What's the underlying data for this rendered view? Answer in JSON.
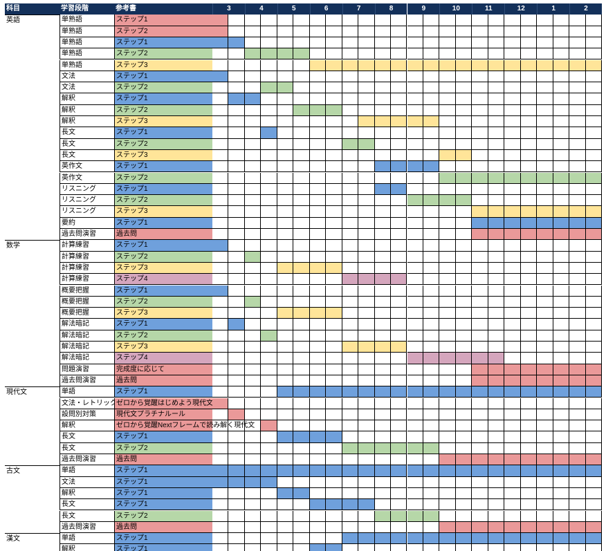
{
  "colors": {
    "header_bg": "#13305a",
    "step1": "#6fa0dc",
    "step2": "#b6d7a8",
    "step3": "#ffe599",
    "step4": "#d5a6bd",
    "past": "#ea9999"
  },
  "headers": {
    "subject": "科目",
    "stage": "学習段階",
    "book": "参考書",
    "months": [
      "3",
      "4",
      "5",
      "6",
      "7",
      "8",
      "9",
      "10",
      "11",
      "12",
      "1",
      "2"
    ]
  },
  "rows": [
    {
      "subject": "英語",
      "stage": "単熟語",
      "book": "ステップ1",
      "color": "past",
      "bars": [
        [
          0,
          0.5
        ]
      ]
    },
    {
      "subject": "",
      "stage": "単熟語",
      "book": "ステップ2",
      "color": "past",
      "bars": [
        [
          0,
          0.5
        ]
      ]
    },
    {
      "subject": "",
      "stage": "単熟語",
      "book": "ステップ1",
      "color": "step1",
      "bars": [
        [
          0,
          1
        ]
      ]
    },
    {
      "subject": "",
      "stage": "単熟語",
      "book": "ステップ2",
      "color": "step2",
      "bars": [
        [
          1,
          3
        ]
      ]
    },
    {
      "subject": "",
      "stage": "単熟語",
      "book": "ステップ3",
      "color": "step3",
      "bars": [
        [
          3,
          12
        ]
      ]
    },
    {
      "subject": "",
      "stage": "文法",
      "book": "ステップ1",
      "color": "step1",
      "bars": [
        [
          0,
          0.5
        ]
      ]
    },
    {
      "subject": "",
      "stage": "文法",
      "book": "ステップ2",
      "color": "step2",
      "bars": [
        [
          1.5,
          2.5
        ]
      ]
    },
    {
      "subject": "",
      "stage": "解釈",
      "book": "ステップ1",
      "color": "step1",
      "bars": [
        [
          0.5,
          1.5
        ]
      ]
    },
    {
      "subject": "",
      "stage": "解釈",
      "book": "ステップ2",
      "color": "step2",
      "bars": [
        [
          2.5,
          4
        ]
      ]
    },
    {
      "subject": "",
      "stage": "解釈",
      "book": "ステップ3",
      "color": "step3",
      "bars": [
        [
          4.5,
          7
        ]
      ]
    },
    {
      "subject": "",
      "stage": "長文",
      "book": "ステップ1",
      "color": "step1",
      "bars": [
        [
          1.5,
          2
        ]
      ]
    },
    {
      "subject": "",
      "stage": "長文",
      "book": "ステップ2",
      "color": "step2",
      "bars": [
        [
          4,
          5
        ]
      ]
    },
    {
      "subject": "",
      "stage": "長文",
      "book": "ステップ3",
      "color": "step3",
      "bars": [
        [
          7,
          8
        ]
      ]
    },
    {
      "subject": "",
      "stage": "英作文",
      "book": "ステップ1",
      "color": "step1",
      "bars": [
        [
          5,
          7
        ]
      ]
    },
    {
      "subject": "",
      "stage": "英作文",
      "book": "ステップ2",
      "color": "step2",
      "bars": [
        [
          7,
          12
        ]
      ]
    },
    {
      "subject": "",
      "stage": "リスニング",
      "book": "ステップ1",
      "color": "step1",
      "bars": [
        [
          5,
          6
        ]
      ]
    },
    {
      "subject": "",
      "stage": "リスニング",
      "book": "ステップ2",
      "color": "step2",
      "bars": [
        [
          6,
          8
        ]
      ]
    },
    {
      "subject": "",
      "stage": "リスニング",
      "book": "ステップ3",
      "color": "step3",
      "bars": [
        [
          8,
          12
        ]
      ]
    },
    {
      "subject": "",
      "stage": "要約",
      "book": "ステップ1",
      "color": "step1",
      "bars": [
        [
          8,
          12
        ]
      ]
    },
    {
      "subject": "",
      "stage": "過去問演習",
      "book": "過去問",
      "color": "past",
      "bars": [
        [
          8,
          12
        ]
      ]
    },
    {
      "subject": "数学",
      "stage": "計算練習",
      "book": "ステップ1",
      "color": "step1",
      "bars": [
        [
          0,
          0.5
        ]
      ]
    },
    {
      "subject": "",
      "stage": "計算練習",
      "book": "ステップ2",
      "color": "step2",
      "bars": [
        [
          1,
          1.5
        ]
      ]
    },
    {
      "subject": "",
      "stage": "計算練習",
      "book": "ステップ3",
      "color": "step3",
      "bars": [
        [
          2,
          4
        ]
      ]
    },
    {
      "subject": "",
      "stage": "計算練習",
      "book": "ステップ4",
      "color": "step4",
      "bars": [
        [
          4,
          6
        ]
      ]
    },
    {
      "subject": "",
      "stage": "概要把握",
      "book": "ステップ1",
      "color": "step1",
      "bars": [
        [
          0,
          0.5
        ]
      ]
    },
    {
      "subject": "",
      "stage": "概要把握",
      "book": "ステップ2",
      "color": "step2",
      "bars": [
        [
          1,
          1.5
        ]
      ]
    },
    {
      "subject": "",
      "stage": "概要把握",
      "book": "ステップ3",
      "color": "step3",
      "bars": [
        [
          2,
          4
        ]
      ]
    },
    {
      "subject": "",
      "stage": "解法暗記",
      "book": "ステップ1",
      "color": "step1",
      "bars": [
        [
          0.5,
          1
        ]
      ]
    },
    {
      "subject": "",
      "stage": "解法暗記",
      "book": "ステップ2",
      "color": "step2",
      "bars": [
        [
          1.5,
          2
        ]
      ]
    },
    {
      "subject": "",
      "stage": "解法暗記",
      "book": "ステップ3",
      "color": "step3",
      "bars": [
        [
          4,
          6
        ]
      ]
    },
    {
      "subject": "",
      "stage": "解法暗記",
      "book": "ステップ4",
      "color": "step4",
      "bars": [
        [
          6,
          9
        ]
      ]
    },
    {
      "subject": "",
      "stage": "問題演習",
      "book": "完成度に応じて",
      "color": "past",
      "bars": [
        [
          8,
          12
        ]
      ]
    },
    {
      "subject": "",
      "stage": "過去問演習",
      "book": "過去問",
      "color": "past",
      "bars": [
        [
          8,
          12
        ]
      ]
    },
    {
      "subject": "現代文",
      "stage": "単語",
      "book": "ステップ1",
      "color": "step1",
      "bars": [
        [
          2,
          12
        ]
      ]
    },
    {
      "subject": "",
      "stage": "文法・レトリック",
      "book": "ゼロから覚醒はじめよう現代文",
      "color": "past",
      "bars": [
        [
          0,
          0.5
        ]
      ]
    },
    {
      "subject": "",
      "stage": "設問別対策",
      "book": "現代文プラチナルール",
      "color": "past",
      "bars": [
        [
          0.5,
          1
        ]
      ]
    },
    {
      "subject": "",
      "stage": "解釈",
      "book": "ゼロから覚醒Nextフレームで読み解く現代文",
      "color": "past",
      "bars": [
        [
          1.5,
          2
        ]
      ]
    },
    {
      "subject": "",
      "stage": "長文",
      "book": "ステップ1",
      "color": "step1",
      "bars": [
        [
          2,
          4
        ]
      ]
    },
    {
      "subject": "",
      "stage": "長文",
      "book": "ステップ2",
      "color": "step2",
      "bars": [
        [
          4,
          7
        ]
      ]
    },
    {
      "subject": "",
      "stage": "過去問演習",
      "book": "過去問",
      "color": "past",
      "bars": [
        [
          7,
          12
        ]
      ]
    },
    {
      "subject": "古文",
      "stage": "単語",
      "book": "ステップ1",
      "color": "step1",
      "bars": [
        [
          0,
          12
        ]
      ]
    },
    {
      "subject": "",
      "stage": "文法",
      "book": "ステップ1",
      "color": "step1",
      "bars": [
        [
          0,
          2
        ]
      ]
    },
    {
      "subject": "",
      "stage": "解釈",
      "book": "ステップ1",
      "color": "step1",
      "bars": [
        [
          2,
          3
        ]
      ]
    },
    {
      "subject": "",
      "stage": "長文",
      "book": "ステップ1",
      "color": "step1",
      "bars": [
        [
          3,
          5
        ]
      ]
    },
    {
      "subject": "",
      "stage": "長文",
      "book": "ステップ2",
      "color": "step2",
      "bars": [
        [
          5,
          7
        ]
      ]
    },
    {
      "subject": "",
      "stage": "過去問演習",
      "book": "過去問",
      "color": "past",
      "bars": [
        [
          7,
          12
        ]
      ]
    },
    {
      "subject": "漢文",
      "stage": "単語",
      "book": "ステップ1",
      "color": "step1",
      "bars": [
        [
          4,
          12
        ]
      ]
    },
    {
      "subject": "",
      "stage": "解釈",
      "book": "ステップ1",
      "color": "step1",
      "bars": [
        [
          3,
          4
        ]
      ]
    }
  ]
}
